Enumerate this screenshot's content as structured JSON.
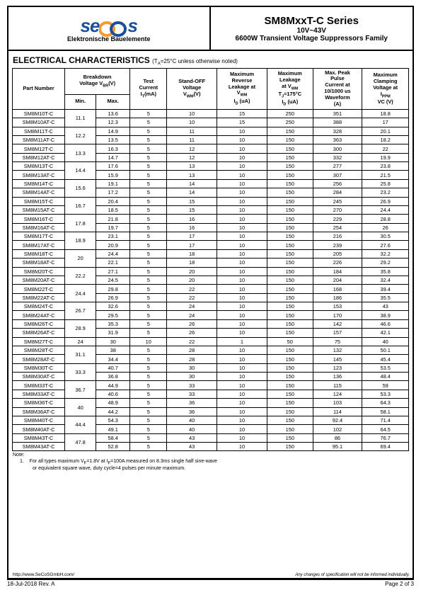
{
  "header": {
    "logo_tag": "Elektronische Bauelemente",
    "title1": "SM8MxxT-C Series",
    "title2": "10V~43V",
    "title3": "6600W Transient Voltage Suppressors Family"
  },
  "section": {
    "title": "ELECTRICAL CHARACTERISTICS",
    "note": "(TA=25°C unless otherwise noted)"
  },
  "columns": {
    "pn": "Part Number",
    "bv": "Breakdown Voltage VBR(V)",
    "min": "Min.",
    "max": "Max.",
    "ti": "Test Current IT(mA)",
    "sov": "Stand-OFF Voltage VWM(V)",
    "mrl": "Maximum Reverse Leakage at VWM ID (uA)",
    "ml": "Maximum Leakage at VWM TJ=175°C ID (uA)",
    "pp": "Max. Peak Pulse Current at 10/1000 us Waveform (A)",
    "mc": "Maximum Clamping Voltage at IPPM VC (V)"
  },
  "rows": [
    {
      "pn": "SM8M10T-C",
      "min": "11.1",
      "max": "13.6",
      "ti": "5",
      "sov": "10",
      "mrl": "15",
      "ml": "250",
      "pp": "351",
      "mc": "18.8"
    },
    {
      "pn": "SM8M10AT-C",
      "min": "",
      "max": "12.3",
      "ti": "5",
      "sov": "10",
      "mrl": "15",
      "ml": "250",
      "pp": "388",
      "mc": "17"
    },
    {
      "pn": "SM8M11T-C",
      "min": "12.2",
      "max": "14.9",
      "ti": "5",
      "sov": "11",
      "mrl": "10",
      "ml": "150",
      "pp": "328",
      "mc": "20.1"
    },
    {
      "pn": "SM8M11AT-C",
      "min": "",
      "max": "13.5",
      "ti": "5",
      "sov": "11",
      "mrl": "10",
      "ml": "150",
      "pp": "363",
      "mc": "18.2"
    },
    {
      "pn": "SM8M12T-C",
      "min": "13.3",
      "max": "16.3",
      "ti": "5",
      "sov": "12",
      "mrl": "10",
      "ml": "150",
      "pp": "300",
      "mc": "22"
    },
    {
      "pn": "SM8M12AT-C",
      "min": "",
      "max": "14.7",
      "ti": "5",
      "sov": "12",
      "mrl": "10",
      "ml": "150",
      "pp": "332",
      "mc": "19.9"
    },
    {
      "pn": "SM8M13T-C",
      "min": "14.4",
      "max": "17.6",
      "ti": "5",
      "sov": "13",
      "mrl": "10",
      "ml": "150",
      "pp": "277",
      "mc": "23.8"
    },
    {
      "pn": "SM8M13AT-C",
      "min": "",
      "max": "15.9",
      "ti": "5",
      "sov": "13",
      "mrl": "10",
      "ml": "150",
      "pp": "307",
      "mc": "21.5"
    },
    {
      "pn": "SM8M14T-C",
      "min": "15.6",
      "max": "19.1",
      "ti": "5",
      "sov": "14",
      "mrl": "10",
      "ml": "150",
      "pp": "256",
      "mc": "25.8"
    },
    {
      "pn": "SM8M14AT-C",
      "min": "",
      "max": "17.2",
      "ti": "5",
      "sov": "14",
      "mrl": "10",
      "ml": "150",
      "pp": "284",
      "mc": "23.2"
    },
    {
      "pn": "SM8M15T-C",
      "min": "16.7",
      "max": "20.4",
      "ti": "5",
      "sov": "15",
      "mrl": "10",
      "ml": "150",
      "pp": "245",
      "mc": "26.9"
    },
    {
      "pn": "SM8M15AT-C",
      "min": "",
      "max": "18.5",
      "ti": "5",
      "sov": "15",
      "mrl": "10",
      "ml": "150",
      "pp": "270",
      "mc": "24.4"
    },
    {
      "pn": "SM8M16T-C",
      "min": "17.8",
      "max": "21.8",
      "ti": "5",
      "sov": "16",
      "mrl": "10",
      "ml": "150",
      "pp": "229",
      "mc": "28.8"
    },
    {
      "pn": "SM8M16AT-C",
      "min": "",
      "max": "19.7",
      "ti": "5",
      "sov": "16",
      "mrl": "10",
      "ml": "150",
      "pp": "254",
      "mc": "26"
    },
    {
      "pn": "SM8M17T-C",
      "min": "18.9",
      "max": "23.1",
      "ti": "5",
      "sov": "17",
      "mrl": "10",
      "ml": "150",
      "pp": "216",
      "mc": "30.5"
    },
    {
      "pn": "SM8M17AT-C",
      "min": "",
      "max": "20.9",
      "ti": "5",
      "sov": "17",
      "mrl": "10",
      "ml": "150",
      "pp": "239",
      "mc": "27.6"
    },
    {
      "pn": "SM8M18T-C",
      "min": "20",
      "max": "24.4",
      "ti": "5",
      "sov": "18",
      "mrl": "10",
      "ml": "150",
      "pp": "205",
      "mc": "32.2"
    },
    {
      "pn": "SM8M18AT-C",
      "min": "",
      "max": "22.1",
      "ti": "5",
      "sov": "18",
      "mrl": "10",
      "ml": "150",
      "pp": "226",
      "mc": "29.2"
    },
    {
      "pn": "SM8M20T-C",
      "min": "22.2",
      "max": "27.1",
      "ti": "5",
      "sov": "20",
      "mrl": "10",
      "ml": "150",
      "pp": "184",
      "mc": "35.8"
    },
    {
      "pn": "SM8M20AT-C",
      "min": "",
      "max": "24.5",
      "ti": "5",
      "sov": "20",
      "mrl": "10",
      "ml": "150",
      "pp": "204",
      "mc": "32.4"
    },
    {
      "pn": "SM8M22T-C",
      "min": "24.4",
      "max": "29.8",
      "ti": "5",
      "sov": "22",
      "mrl": "10",
      "ml": "150",
      "pp": "168",
      "mc": "39.4"
    },
    {
      "pn": "SM8M22AT-C",
      "min": "",
      "max": "26.9",
      "ti": "5",
      "sov": "22",
      "mrl": "10",
      "ml": "150",
      "pp": "186",
      "mc": "35.5"
    },
    {
      "pn": "SM8M24T-C",
      "min": "26.7",
      "max": "32.6",
      "ti": "5",
      "sov": "24",
      "mrl": "10",
      "ml": "150",
      "pp": "153",
      "mc": "43"
    },
    {
      "pn": "SM8M24AT-C",
      "min": "",
      "max": "29.5",
      "ti": "5",
      "sov": "24",
      "mrl": "10",
      "ml": "150",
      "pp": "170",
      "mc": "38.9"
    },
    {
      "pn": "SM8M26T-C",
      "min": "28.9",
      "max": "35.3",
      "ti": "5",
      "sov": "26",
      "mrl": "10",
      "ml": "150",
      "pp": "142",
      "mc": "46.6"
    },
    {
      "pn": "SM8M26AT-C",
      "min": "",
      "max": "31.9",
      "ti": "5",
      "sov": "26",
      "mrl": "10",
      "ml": "150",
      "pp": "157",
      "mc": "42.1"
    },
    {
      "pn": "SM8M27T-C",
      "min": "24",
      "max": "30",
      "ti": "10",
      "sov": "22",
      "mrl": "1",
      "ml": "50",
      "pp": "75",
      "mc": "40"
    },
    {
      "pn": "SM8M28T-C",
      "min": "31.1",
      "max": "38",
      "ti": "5",
      "sov": "28",
      "mrl": "10",
      "ml": "150",
      "pp": "132",
      "mc": "50.1"
    },
    {
      "pn": "SM8M28AT-C",
      "min": "",
      "max": "34.4",
      "ti": "5",
      "sov": "28",
      "mrl": "10",
      "ml": "150",
      "pp": "145",
      "mc": "45.4"
    },
    {
      "pn": "SM8M30T-C",
      "min": "33.3",
      "max": "40.7",
      "ti": "5",
      "sov": "30",
      "mrl": "10",
      "ml": "150",
      "pp": "123",
      "mc": "53.5"
    },
    {
      "pn": "SM8M30AT-C",
      "min": "",
      "max": "36.8",
      "ti": "5",
      "sov": "30",
      "mrl": "10",
      "ml": "150",
      "pp": "136",
      "mc": "48.4"
    },
    {
      "pn": "SM8M33T-C",
      "min": "36.7",
      "max": "44.9",
      "ti": "5",
      "sov": "33",
      "mrl": "10",
      "ml": "150",
      "pp": "115",
      "mc": "59"
    },
    {
      "pn": "SM8M33AT-C",
      "min": "",
      "max": "40.6",
      "ti": "5",
      "sov": "33",
      "mrl": "10",
      "ml": "150",
      "pp": "124",
      "mc": "53.3"
    },
    {
      "pn": "SM8M36T-C",
      "min": "40",
      "max": "48.9",
      "ti": "5",
      "sov": "36",
      "mrl": "10",
      "ml": "150",
      "pp": "103",
      "mc": "64.3"
    },
    {
      "pn": "SM8M36AT-C",
      "min": "",
      "max": "44.2",
      "ti": "5",
      "sov": "36",
      "mrl": "10",
      "ml": "150",
      "pp": "114",
      "mc": "58.1"
    },
    {
      "pn": "SM8M40T-C",
      "min": "44.4",
      "max": "54.3",
      "ti": "5",
      "sov": "40",
      "mrl": "10",
      "ml": "150",
      "pp": "92.4",
      "mc": "71.4"
    },
    {
      "pn": "SM8M40AT-C",
      "min": "",
      "max": "49.1",
      "ti": "5",
      "sov": "40",
      "mrl": "10",
      "ml": "150",
      "pp": "102",
      "mc": "64.5"
    },
    {
      "pn": "SM8M43T-C",
      "min": "47.8",
      "max": "58.4",
      "ti": "5",
      "sov": "43",
      "mrl": "10",
      "ml": "150",
      "pp": "86",
      "mc": "76.7"
    },
    {
      "pn": "SM8M43AT-C",
      "min": "",
      "max": "52.8",
      "ti": "5",
      "sov": "43",
      "mrl": "10",
      "ml": "150",
      "pp": "95.1",
      "mc": "69.4"
    }
  ],
  "note": {
    "label": "Note:",
    "line1": "1.    For all types maximum VF=1.8V at IF=100A measured on 8.3ms single half sine-wave",
    "line2": "or equivalent square wave, duty cycle=4 pulses per minute maximum."
  },
  "url": "http://www.SeCoSGmbH.com/",
  "disclaimer": "Any changes of specification will not be informed individually.",
  "footer": {
    "left": "18-Jul-2018 Rev. A",
    "right": "Page 2 of 3"
  }
}
